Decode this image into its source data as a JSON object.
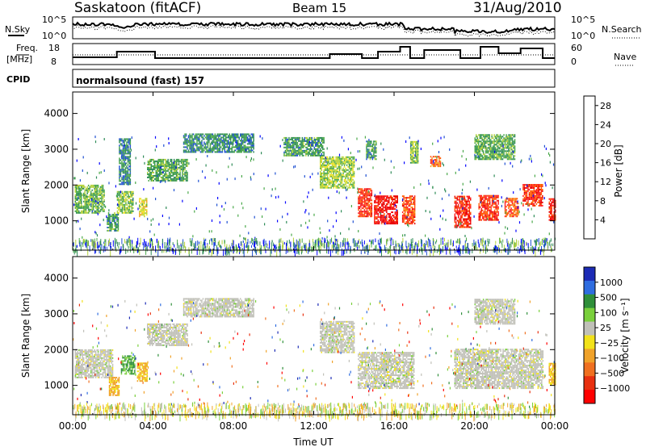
{
  "header": {
    "station": "Saskatoon (fitACF)",
    "beam": "Beam 15",
    "date": "31/Aug/2010"
  },
  "noise_panel": {
    "left_label": "N.Sky",
    "right_label": "N.Search",
    "left_ticks": [
      "10^5",
      "10^0"
    ],
    "right_ticks": [
      "10^5",
      "10^0"
    ]
  },
  "freq_panel": {
    "left_label_line1": "Freq.",
    "left_label_line2": "[MHz]",
    "left_ticks": [
      "18",
      "8"
    ],
    "right_ticks": [
      "60",
      "0"
    ],
    "right_label": "Nave"
  },
  "cpid": {
    "label": "CPID",
    "mode": "normalsound (fast) 157"
  },
  "colors": {
    "power_scale": [
      "#0000ff",
      "#1e50d2",
      "#2e8b57",
      "#4aa84a",
      "#b4d23c",
      "#f0e21e",
      "#f5a01e",
      "#ff5a00",
      "#ff2020",
      "#e60000"
    ],
    "velocity_scale": [
      "#1c2bb5",
      "#2f6de0",
      "#2f8f3a",
      "#7ad03c",
      "#c0c0b8",
      "#f2e21a",
      "#f0a22a",
      "#f07020",
      "#e83010",
      "#ff0000"
    ]
  },
  "chart_data": [
    {
      "type": "heatmap",
      "title": "",
      "xlabel": "Time UT",
      "ylabel": "Slant Range [km]",
      "xlim": [
        "00:00",
        "24:00"
      ],
      "ylim": [
        180,
        4600
      ],
      "xticks": [
        "00:00",
        "04:00",
        "08:00",
        "12:00",
        "16:00",
        "20:00",
        "00:00"
      ],
      "yticks": [
        "1000",
        "2000",
        "3000",
        "4000"
      ],
      "colorbar_label": "Power [dB]",
      "colorbar_ticks": [
        "4",
        "8",
        "12",
        "16",
        "20",
        "24",
        "28"
      ],
      "colorbar_range": [
        0,
        30
      ],
      "regions": [
        {
          "t0": 0.1,
          "t1": 1.6,
          "r0": 1200,
          "r1": 2000,
          "level": 11
        },
        {
          "t0": 1.7,
          "t1": 2.3,
          "r0": 700,
          "r1": 1200,
          "level": 9
        },
        {
          "t0": 2.2,
          "t1": 3.0,
          "r0": 1200,
          "r1": 1800,
          "level": 12
        },
        {
          "t0": 2.3,
          "t1": 2.9,
          "r0": 2000,
          "r1": 3300,
          "level": 7
        },
        {
          "t0": 3.3,
          "t1": 3.7,
          "r0": 1100,
          "r1": 1600,
          "level": 16
        },
        {
          "t0": 3.7,
          "t1": 5.7,
          "r0": 2100,
          "r1": 2700,
          "level": 10
        },
        {
          "t0": 5.5,
          "t1": 9.0,
          "r0": 2900,
          "r1": 3400,
          "level": 8
        },
        {
          "t0": 10.5,
          "t1": 12.5,
          "r0": 2800,
          "r1": 3300,
          "level": 9
        },
        {
          "t0": 12.3,
          "t1": 14.0,
          "r0": 1900,
          "r1": 2800,
          "level": 13
        },
        {
          "t0": 14.2,
          "t1": 14.9,
          "r0": 1100,
          "r1": 1900,
          "level": 25
        },
        {
          "t0": 15.0,
          "t1": 16.2,
          "r0": 900,
          "r1": 1700,
          "level": 27
        },
        {
          "t0": 16.4,
          "t1": 17.0,
          "r0": 900,
          "r1": 1700,
          "level": 24
        },
        {
          "t0": 14.6,
          "t1": 15.1,
          "r0": 2700,
          "r1": 3200,
          "level": 9
        },
        {
          "t0": 16.8,
          "t1": 17.2,
          "r0": 2600,
          "r1": 3200,
          "level": 12
        },
        {
          "t0": 17.8,
          "t1": 18.3,
          "r0": 2500,
          "r1": 2800,
          "level": 22
        },
        {
          "t0": 19.0,
          "t1": 19.8,
          "r0": 800,
          "r1": 1700,
          "level": 26
        },
        {
          "t0": 20.2,
          "t1": 21.2,
          "r0": 1000,
          "r1": 1700,
          "level": 25
        },
        {
          "t0": 21.5,
          "t1": 22.2,
          "r0": 1100,
          "r1": 1600,
          "level": 23
        },
        {
          "t0": 22.4,
          "t1": 23.4,
          "r0": 1400,
          "r1": 2000,
          "level": 25
        },
        {
          "t0": 20.0,
          "t1": 22.0,
          "r0": 2700,
          "r1": 3400,
          "level": 10
        },
        {
          "t0": 23.7,
          "t1": 24.0,
          "r0": 1000,
          "r1": 1600,
          "level": 26
        }
      ]
    },
    {
      "type": "heatmap",
      "title": "",
      "xlabel": "Time UT",
      "ylabel": "Slant Range [km]",
      "xlim": [
        "00:00",
        "24:00"
      ],
      "ylim": [
        180,
        4600
      ],
      "xticks": [
        "00:00",
        "04:00",
        "08:00",
        "12:00",
        "16:00",
        "20:00",
        "00:00"
      ],
      "yticks": [
        "1000",
        "2000",
        "3000",
        "4000"
      ],
      "colorbar_label": "Velocity [m s⁻¹]",
      "colorbar_ticks": [
        "1000",
        "500",
        "100",
        "25",
        "−25",
        "−100",
        "−500",
        "−1000"
      ],
      "regions": [
        {
          "t0": 0.1,
          "t1": 2.0,
          "r0": 1200,
          "r1": 2000,
          "category": "near-zero"
        },
        {
          "t0": 1.8,
          "t1": 2.3,
          "r0": 700,
          "r1": 1200,
          "category": "small-negative"
        },
        {
          "t0": 2.4,
          "t1": 3.1,
          "r0": 1300,
          "r1": 1800,
          "category": "positive"
        },
        {
          "t0": 3.2,
          "t1": 3.7,
          "r0": 1100,
          "r1": 1600,
          "category": "small-negative"
        },
        {
          "t0": 3.7,
          "t1": 5.7,
          "r0": 2100,
          "r1": 2700,
          "category": "near-zero"
        },
        {
          "t0": 5.5,
          "t1": 9.0,
          "r0": 2900,
          "r1": 3400,
          "category": "near-zero"
        },
        {
          "t0": 12.3,
          "t1": 14.0,
          "r0": 1900,
          "r1": 2800,
          "category": "near-zero"
        },
        {
          "t0": 14.2,
          "t1": 17.0,
          "r0": 900,
          "r1": 1900,
          "category": "near-zero"
        },
        {
          "t0": 19.0,
          "t1": 23.4,
          "r0": 900,
          "r1": 2000,
          "category": "near-zero"
        },
        {
          "t0": 20.0,
          "t1": 22.0,
          "r0": 2700,
          "r1": 3400,
          "category": "near-zero"
        },
        {
          "t0": 23.7,
          "t1": 24.0,
          "r0": 1000,
          "r1": 1600,
          "category": "small-negative"
        }
      ]
    }
  ]
}
